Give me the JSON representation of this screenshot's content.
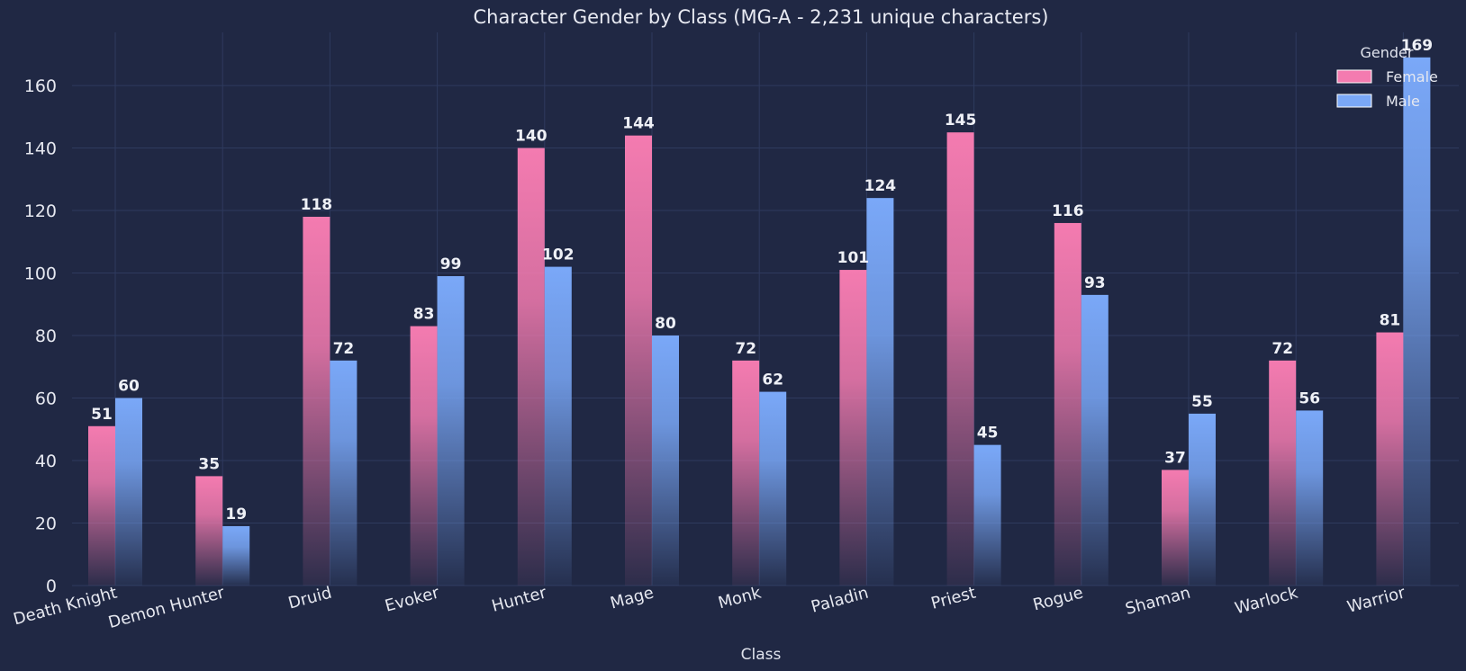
{
  "chart_data": {
    "type": "bar",
    "title": "Character Gender by Class (MG-A - 2,231 unique characters)",
    "xlabel": "Class",
    "ylabel": "",
    "categories": [
      "Death Knight",
      "Demon Hunter",
      "Druid",
      "Evoker",
      "Hunter",
      "Mage",
      "Monk",
      "Paladin",
      "Priest",
      "Rogue",
      "Shaman",
      "Warlock",
      "Warrior"
    ],
    "series": [
      {
        "name": "Female",
        "values": [
          51,
          35,
          118,
          83,
          140,
          144,
          72,
          101,
          145,
          116,
          37,
          72,
          81
        ]
      },
      {
        "name": "Male",
        "values": [
          60,
          19,
          72,
          99,
          102,
          80,
          62,
          124,
          45,
          93,
          55,
          56,
          169
        ]
      }
    ],
    "ylim": [
      0,
      177
    ],
    "yticks": [
      0,
      20,
      40,
      60,
      80,
      100,
      120,
      140,
      160
    ],
    "grid": true,
    "legend": {
      "title": "Gender",
      "placement": "top-right"
    },
    "colors": {
      "Female": "#f47bb0",
      "Male": "#7aa8f8",
      "background": "#202844",
      "grid": "#2e3a5e"
    }
  }
}
